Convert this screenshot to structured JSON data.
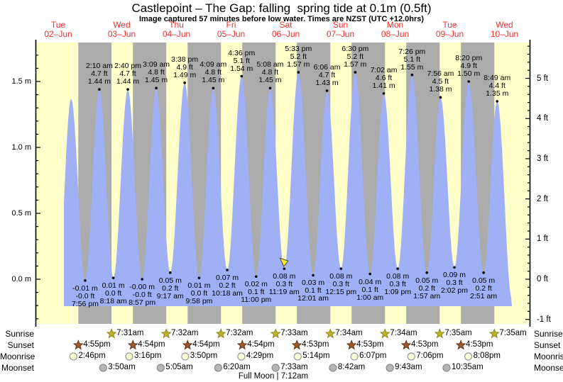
{
  "header": {
    "title": "Castlepoint – The Gap: falling  spring tide at 0.1m (0.5ft)",
    "subtitle": "Image captured 57 minutes before low water. Times are NZST (UTC +12.0hrs)"
  },
  "colors": {
    "day_band": "#ffffca",
    "night_band": "#ababab",
    "tide_fill": "#9fb0f7",
    "day_label_red": "#f23030",
    "axis_black": "#000000",
    "sunrise_star": "#bcb32b",
    "sunset_star": "#9c572a",
    "moonrise_circle": "#ffffd6",
    "moonset_circle": "#b6b6b6",
    "capture_marker": "#ffe92a"
  },
  "days": [
    {
      "name": "Tue",
      "date": "02–Jun"
    },
    {
      "name": "Wed",
      "date": "03–Jun"
    },
    {
      "name": "Thu",
      "date": "04–Jun"
    },
    {
      "name": "Fri",
      "date": "05–Jun"
    },
    {
      "name": "Sat",
      "date": "06–Jun"
    },
    {
      "name": "Sun",
      "date": "07–Jun"
    },
    {
      "name": "Mon",
      "date": "08–Jun"
    },
    {
      "name": "Tue",
      "date": "09–Jun"
    },
    {
      "name": "Wed",
      "date": "10–Jun"
    }
  ],
  "axis_left": {
    "labels": [
      "0.0 m",
      "0.5 m",
      "1.0 m",
      "1.5 m"
    ],
    "values": [
      0.0,
      0.5,
      1.0,
      1.5
    ]
  },
  "axis_right": {
    "labels": [
      "-1 ft",
      "0 ft",
      "1 ft",
      "2 ft",
      "3 ft",
      "4 ft",
      "5 ft"
    ],
    "values": [
      -1,
      0,
      1,
      2,
      3,
      4,
      5
    ]
  },
  "chart_data": {
    "type": "area",
    "title": "Castlepoint – The Gap tide curve, 02–10 June",
    "ylabel_left": "metres",
    "ylabel_right": "feet",
    "ylim_m": [
      -0.35,
      1.8
    ],
    "tides": [
      {
        "type": "high",
        "day": 0,
        "time": "1:46 pm",
        "m": 1.37,
        "annotated": false,
        "estimated": true,
        "lines": []
      },
      {
        "type": "low",
        "day": 0,
        "time": "7:56 pm",
        "m": -0.01,
        "annotated": true,
        "lines": [
          "-0.01 m",
          "-0.0 ft",
          "7:56 pm"
        ]
      },
      {
        "type": "high",
        "day": 1,
        "time": "2:10 am",
        "m": 1.44,
        "annotated": true,
        "lines": [
          "2:10 am",
          "4.7 ft",
          "1.44 m"
        ]
      },
      {
        "type": "low",
        "day": 1,
        "time": "8:18 am",
        "m": 0.01,
        "annotated": true,
        "lines": [
          "0.01 m",
          "0.0 ft",
          "8:18 am"
        ]
      },
      {
        "type": "high",
        "day": 1,
        "time": "2:40 pm",
        "m": 1.44,
        "annotated": true,
        "lines": [
          "2:40 pm",
          "4.7 ft",
          "1.44 m"
        ]
      },
      {
        "type": "low",
        "day": 1,
        "time": "8:57 pm",
        "m": 0.0,
        "annotated": true,
        "lines": [
          "-0.00 m",
          "-0.0 ft",
          "8:57 pm"
        ]
      },
      {
        "type": "high",
        "day": 2,
        "time": "3:09 am",
        "m": 1.45,
        "annotated": true,
        "lines": [
          "3:09 am",
          "4.8 ft",
          "1.45 m"
        ]
      },
      {
        "type": "low",
        "day": 2,
        "time": "9:17 am",
        "m": 0.05,
        "annotated": true,
        "lines": [
          "0.05 m",
          "0.2 ft",
          "9:17 am"
        ]
      },
      {
        "type": "high",
        "day": 2,
        "time": "3:38 pm",
        "m": 1.49,
        "annotated": true,
        "lines": [
          "3:38 pm",
          "4.9 ft",
          "1.49 m"
        ]
      },
      {
        "type": "low",
        "day": 2,
        "time": "9:58 pm",
        "m": 0.01,
        "annotated": true,
        "lines": [
          "0.01 m",
          "0.0 ft",
          "9:58 pm"
        ]
      },
      {
        "type": "high",
        "day": 3,
        "time": "4:09 am",
        "m": 1.45,
        "annotated": true,
        "lines": [
          "4:09 am",
          "4.8 ft",
          "1.45 m"
        ]
      },
      {
        "type": "low",
        "day": 3,
        "time": "10:18 am",
        "m": 0.07,
        "annotated": true,
        "lines": [
          "0.07 m",
          "0.2 ft",
          "10:18 am"
        ]
      },
      {
        "type": "high",
        "day": 3,
        "time": "4:36 pm",
        "m": 1.54,
        "annotated": true,
        "lines": [
          "4:36 pm",
          "5.1 ft",
          "1.54 m"
        ]
      },
      {
        "type": "low",
        "day": 3,
        "time": "11:00 pm",
        "m": 0.02,
        "annotated": true,
        "lines": [
          "0.02 m",
          "0.1 ft",
          "11:00 pm"
        ]
      },
      {
        "type": "high",
        "day": 4,
        "time": "5:08 am",
        "m": 1.45,
        "annotated": true,
        "lines": [
          "5:08 am",
          "4.8 ft",
          "1.45 m"
        ]
      },
      {
        "type": "low",
        "day": 4,
        "time": "11:19 am",
        "m": 0.08,
        "annotated": true,
        "capture": true,
        "lines": [
          "0.08 m",
          "0.3 ft",
          "11:19 am"
        ]
      },
      {
        "type": "high",
        "day": 4,
        "time": "5:33 pm",
        "m": 1.57,
        "annotated": true,
        "lines": [
          "5:33 pm",
          "5.2 ft",
          "1.57 m"
        ]
      },
      {
        "type": "low",
        "day": 5,
        "time": "12:01 am",
        "m": 0.03,
        "annotated": true,
        "lines": [
          "0.03 m",
          "0.1 ft",
          "12:01 am"
        ]
      },
      {
        "type": "high",
        "day": 5,
        "time": "6:06 am",
        "m": 1.43,
        "annotated": true,
        "lines": [
          "6:06 am",
          "4.7 ft",
          "1.43 m"
        ]
      },
      {
        "type": "low",
        "day": 5,
        "time": "12:15 pm",
        "m": 0.08,
        "annotated": true,
        "lines": [
          "0.08 m",
          "0.3 ft",
          "12:15 pm"
        ]
      },
      {
        "type": "high",
        "day": 5,
        "time": "6:30 pm",
        "m": 1.57,
        "annotated": true,
        "lines": [
          "6:30 pm",
          "5.2 ft",
          "1.57 m"
        ]
      },
      {
        "type": "low",
        "day": 6,
        "time": "1:00 am",
        "m": 0.04,
        "annotated": true,
        "lines": [
          "0.04 m",
          "0.1 ft",
          "1:00 am"
        ]
      },
      {
        "type": "high",
        "day": 6,
        "time": "7:02 am",
        "m": 1.41,
        "annotated": true,
        "lines": [
          "7:02 am",
          "4.6 ft",
          "1.41 m"
        ]
      },
      {
        "type": "low",
        "day": 6,
        "time": "1:09 pm",
        "m": 0.08,
        "annotated": true,
        "lines": [
          "0.08 m",
          "0.3 ft",
          "1:09 pm"
        ]
      },
      {
        "type": "high",
        "day": 6,
        "time": "7:26 pm",
        "m": 1.55,
        "annotated": true,
        "lines": [
          "7:26 pm",
          "5.1 ft",
          "1.55 m"
        ]
      },
      {
        "type": "low",
        "day": 7,
        "time": "1:57 am",
        "m": 0.05,
        "annotated": true,
        "lines": [
          "0.05 m",
          "0.2 ft",
          "1:57 am"
        ]
      },
      {
        "type": "high",
        "day": 7,
        "time": "7:56 am",
        "m": 1.38,
        "annotated": true,
        "lines": [
          "7:56 am",
          "4.5 ft",
          "1.38 m"
        ]
      },
      {
        "type": "low",
        "day": 7,
        "time": "2:02 pm",
        "m": 0.09,
        "annotated": true,
        "lines": [
          "0.09 m",
          "0.3 ft",
          "2:02 pm"
        ]
      },
      {
        "type": "high",
        "day": 7,
        "time": "8:20 pm",
        "m": 1.5,
        "annotated": true,
        "lines": [
          "8:20 pm",
          "4.9 ft",
          "1.50 m"
        ]
      },
      {
        "type": "low",
        "day": 8,
        "time": "2:51 am",
        "m": 0.05,
        "annotated": true,
        "lines": [
          "0.05 m",
          "0.2 ft",
          "2:51 am"
        ]
      },
      {
        "type": "high",
        "day": 8,
        "time": "8:49 am",
        "m": 1.35,
        "annotated": true,
        "lines": [
          "8:49 am",
          "4.4 ft",
          "1.35 m"
        ]
      }
    ]
  },
  "sun_moon": {
    "rows": [
      {
        "id": "sunrise",
        "label": "Sunrise",
        "icon": "sunrise-star",
        "events": [
          {
            "day": 1,
            "time": "7:31am"
          },
          {
            "day": 2,
            "time": "7:32am"
          },
          {
            "day": 3,
            "time": "7:32am"
          },
          {
            "day": 4,
            "time": "7:33am"
          },
          {
            "day": 5,
            "time": "7:34am"
          },
          {
            "day": 6,
            "time": "7:34am"
          },
          {
            "day": 7,
            "time": "7:35am"
          },
          {
            "day": 8,
            "time": "7:35am"
          }
        ]
      },
      {
        "id": "sunset",
        "label": "Sunset",
        "icon": "sunset-star",
        "events": [
          {
            "day": 0,
            "time": "4:55pm"
          },
          {
            "day": 1,
            "time": "4:54pm"
          },
          {
            "day": 2,
            "time": "4:54pm"
          },
          {
            "day": 3,
            "time": "4:54pm"
          },
          {
            "day": 4,
            "time": "4:53pm"
          },
          {
            "day": 5,
            "time": "4:53pm"
          },
          {
            "day": 6,
            "time": "4:53pm"
          },
          {
            "day": 7,
            "time": "4:53pm"
          }
        ]
      },
      {
        "id": "moonrise",
        "label": "Moonrise",
        "icon": "moonrise-circle",
        "events": [
          {
            "day": 0,
            "time": "2:46pm"
          },
          {
            "day": 1,
            "time": "3:16pm"
          },
          {
            "day": 2,
            "time": "3:50pm"
          },
          {
            "day": 3,
            "time": "4:29pm"
          },
          {
            "day": 4,
            "time": "5:14pm"
          },
          {
            "day": 5,
            "time": "6:07pm"
          },
          {
            "day": 6,
            "time": "7:06pm"
          },
          {
            "day": 7,
            "time": "8:08pm"
          }
        ]
      },
      {
        "id": "moonset",
        "label": "Moonset",
        "icon": "moonset-circle",
        "events": [
          {
            "day": 1,
            "time": "3:50am"
          },
          {
            "day": 2,
            "time": "5:05am"
          },
          {
            "day": 3,
            "time": "6:20am"
          },
          {
            "day": 4,
            "time": "7:33am"
          },
          {
            "day": 5,
            "time": "8:42am"
          },
          {
            "day": 6,
            "time": "9:43am"
          },
          {
            "day": 7,
            "time": "10:35am"
          }
        ]
      }
    ],
    "moon_phase": "Full Moon | 7:12am"
  }
}
